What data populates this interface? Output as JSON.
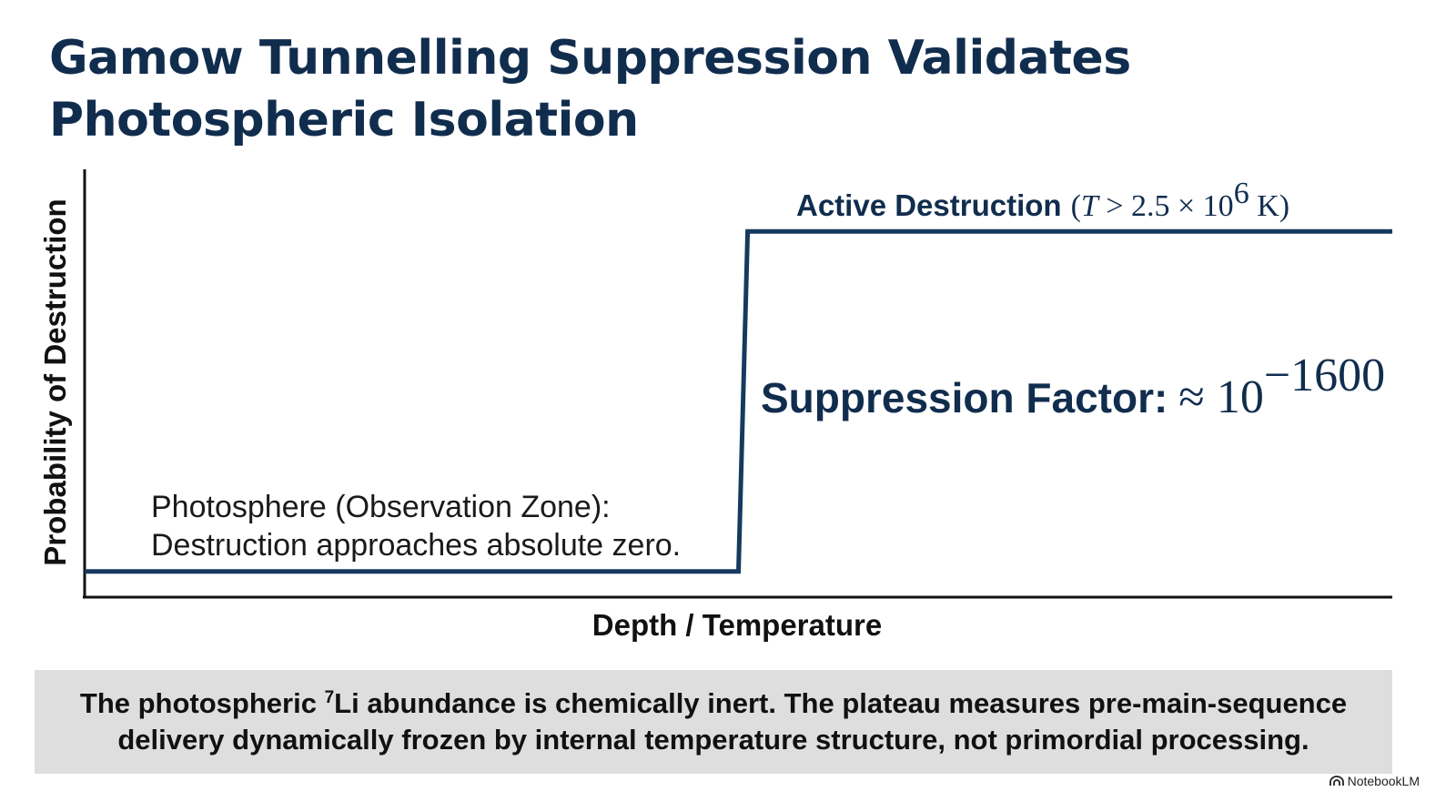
{
  "title": {
    "line1": "Gamow Tunnelling Suppression Validates",
    "line2": "Photospheric Isolation"
  },
  "chart_data": {
    "type": "line",
    "xlabel": "Depth / Temperature",
    "ylabel": "Probability of Destruction",
    "x_ticks": [],
    "y_ticks": [],
    "grid": false,
    "series": [
      {
        "points": [
          {
            "x": 0.0,
            "y": 0.06
          },
          {
            "x": 0.5,
            "y": 0.06
          },
          {
            "x": 0.507,
            "y": 0.855
          },
          {
            "x": 1.0,
            "y": 0.855
          }
        ],
        "color": "#163a5f"
      }
    ],
    "xlim": [
      0,
      1
    ],
    "ylim": [
      0,
      1
    ],
    "annotations": {
      "active_destruction": {
        "label": "Active Destruction",
        "condition_open": "(",
        "condition_T": "T",
        "condition_rel": " > 2.5 × 10",
        "condition_exp": "6",
        "condition_unit": " K)"
      },
      "suppression": {
        "label": "Suppression Factor:",
        "approx": "≈ 10",
        "exponent": "−1600"
      },
      "photosphere": {
        "line1": "Photosphere (Observation Zone):",
        "line2": "Destruction approaches absolute zero."
      }
    }
  },
  "footer": {
    "line1_pre": "The photospheric ",
    "line1_sup": "7",
    "line1_post": "Li abundance is chemically inert. The plateau measures pre-main-sequence",
    "line2": "delivery dynamically frozen by internal temperature structure, not primordial processing."
  },
  "brand": {
    "label": "NotebookLM",
    "icon": "notebooklm-logo-icon"
  },
  "colors": {
    "title": "#112d4e",
    "line": "#163a5f",
    "axis": "#111111",
    "footer_bg": "#dedede"
  }
}
